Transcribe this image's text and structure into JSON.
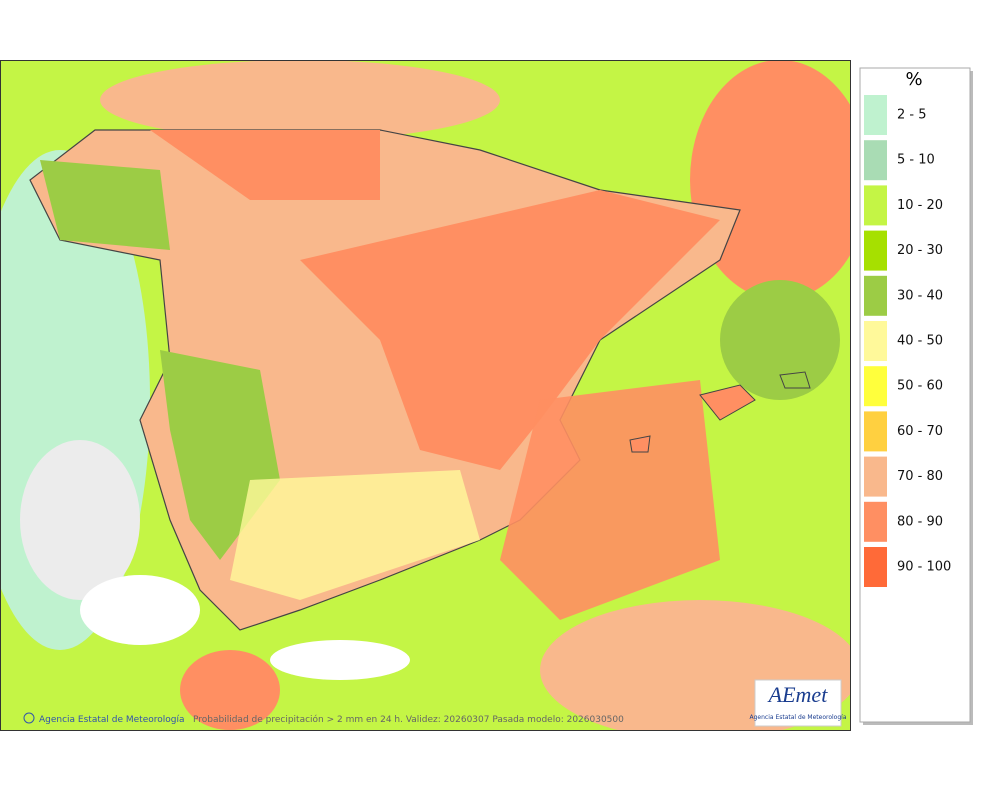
{
  "legend": {
    "title": "%",
    "items": [
      {
        "label": "2 - 5",
        "color": "#bff2cf"
      },
      {
        "label": "5 - 10",
        "color": "#a9dcb4"
      },
      {
        "label": "10 - 20",
        "color": "#c4f545"
      },
      {
        "label": "20 - 30",
        "color": "#a6e000"
      },
      {
        "label": "30 - 40",
        "color": "#9ccc45"
      },
      {
        "label": "40 - 50",
        "color": "#fff99a"
      },
      {
        "label": "50 - 60",
        "color": "#ffff3c"
      },
      {
        "label": "60 - 70",
        "color": "#ffd040"
      },
      {
        "label": "70 - 80",
        "color": "#f9b88c"
      },
      {
        "label": "80 - 90",
        "color": "#ff8f62"
      },
      {
        "label": "90 - 100",
        "color": "#ff6a38"
      }
    ]
  },
  "footer": {
    "credit": "Agencia Estatal de Meteorología",
    "caption": "Probabilidad de precipitación > 2 mm en 24 h. Validez: 20260307 Pasada modelo: 2026030500"
  },
  "logo": {
    "name": "AEmet",
    "subtitle": "Agencia Estatal de Meteorología"
  }
}
